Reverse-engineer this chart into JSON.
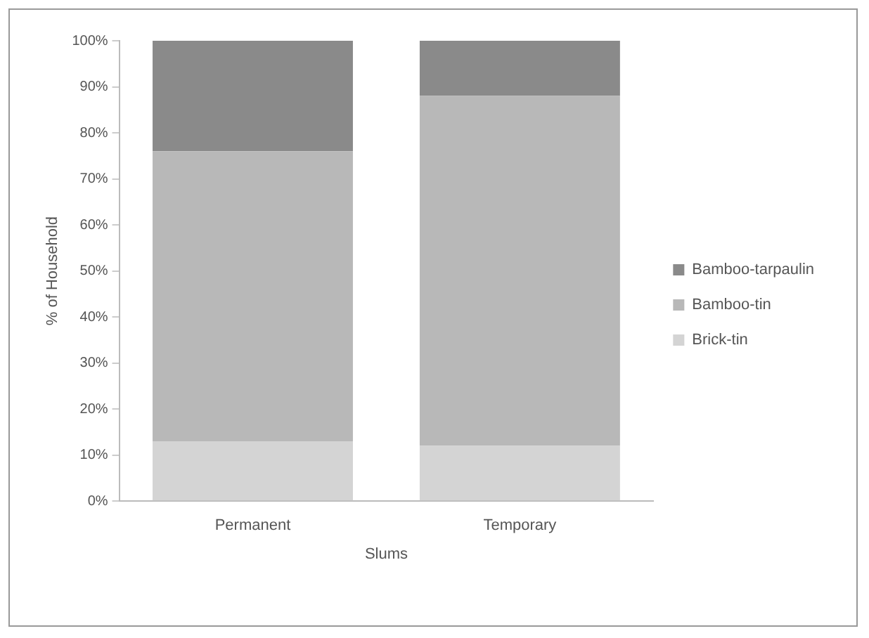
{
  "chart_data": {
    "type": "bar",
    "stacked": true,
    "categories": [
      "Permanent",
      "Temporary"
    ],
    "xlabel": "Slums",
    "ylabel": "% of Household",
    "ylim": [
      0,
      100
    ],
    "yticks": [
      {
        "value": 0,
        "label": "0%"
      },
      {
        "value": 10,
        "label": "10%"
      },
      {
        "value": 20,
        "label": "20%"
      },
      {
        "value": 30,
        "label": "30%"
      },
      {
        "value": 40,
        "label": "40%"
      },
      {
        "value": 50,
        "label": "50%"
      },
      {
        "value": 60,
        "label": "60%"
      },
      {
        "value": 70,
        "label": "70%"
      },
      {
        "value": 80,
        "label": "80%"
      },
      {
        "value": 90,
        "label": "90%"
      },
      {
        "value": 100,
        "label": "100%"
      }
    ],
    "legend": "right",
    "grid": false,
    "series": [
      {
        "name": "Brick-tin",
        "color": "#d4d4d4",
        "values": [
          13,
          12
        ]
      },
      {
        "name": "Bamboo-tin",
        "color": "#b8b8b8",
        "values": [
          63,
          76
        ]
      },
      {
        "name": "Bamboo-tarpaulin",
        "color": "#8a8a8a",
        "values": [
          24,
          12
        ]
      }
    ]
  }
}
